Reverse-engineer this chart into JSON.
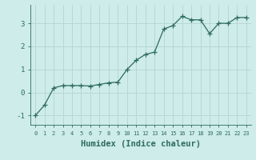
{
  "x": [
    0,
    1,
    2,
    3,
    4,
    5,
    6,
    7,
    8,
    9,
    10,
    11,
    12,
    13,
    14,
    15,
    16,
    17,
    18,
    19,
    20,
    21,
    22,
    23
  ],
  "y": [
    -1.0,
    -0.55,
    0.2,
    0.3,
    0.3,
    0.3,
    0.28,
    0.35,
    0.42,
    0.45,
    1.0,
    1.4,
    1.65,
    1.75,
    2.75,
    2.9,
    3.3,
    3.15,
    3.15,
    2.55,
    3.0,
    3.0,
    3.25,
    3.25
  ],
  "line_color": "#2e6b5e",
  "marker": "+",
  "marker_size": 4,
  "background_color": "#cdecea",
  "grid_color": "#b8d8d4",
  "tick_color": "#2e6b5e",
  "xlabel": "Humidex (Indice chaleur)",
  "xlabel_fontsize": 7.5,
  "ylabel_ticks": [
    -1,
    0,
    1,
    2,
    3
  ],
  "xlim": [
    -0.5,
    23.5
  ],
  "ylim": [
    -1.4,
    3.8
  ],
  "xtick_labels": [
    "0",
    "1",
    "2",
    "3",
    "4",
    "5",
    "6",
    "7",
    "8",
    "9",
    "10",
    "11",
    "12",
    "13",
    "14",
    "15",
    "16",
    "17",
    "18",
    "19",
    "20",
    "21",
    "22",
    "23"
  ]
}
